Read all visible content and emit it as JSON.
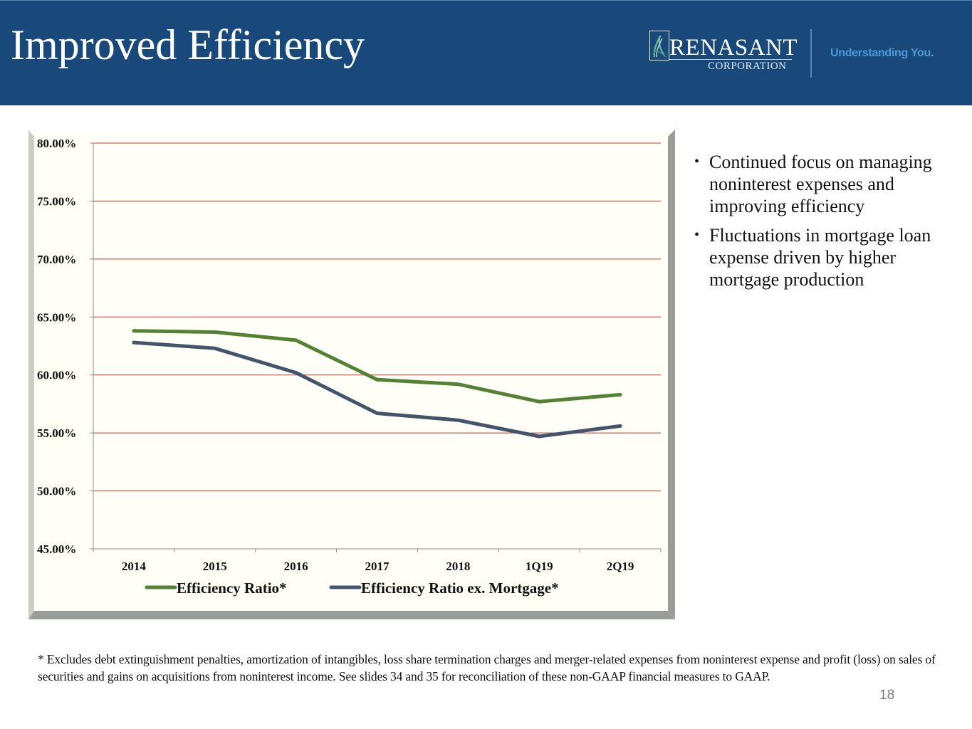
{
  "header": {
    "title": "Improved Efficiency",
    "logo": {
      "name": "RENASANT",
      "subtitle": "CORPORATION",
      "icon": "renasant-leaf-icon",
      "tagline": "Understanding You."
    },
    "colors": {
      "banner": "#19497a",
      "tagline": "#4a9ad6"
    }
  },
  "bullets": [
    "Continued focus on managing noninterest expenses and improving efficiency",
    "Fluctuations in mortgage loan expense driven by higher mortgage production"
  ],
  "footnote": "* Excludes debt extinguishment penalties, amortization of intangibles, loss share termination charges and merger-related expenses from noninterest expense and profit (loss) on sales of securities and gains on acquisitions from noninterest income.  See slides 34 and 35 for reconciliation of these non-GAAP financial measures to GAAP.",
  "page_number": "18",
  "chart_data": {
    "type": "line",
    "title": "",
    "xlabel": "",
    "ylabel": "",
    "categories": [
      "2014",
      "2015",
      "2016",
      "2017",
      "2018",
      "1Q19",
      "2Q19"
    ],
    "ylim": [
      45,
      80
    ],
    "yticks": [
      45,
      50,
      55,
      60,
      65,
      70,
      75,
      80
    ],
    "ytick_labels": [
      "45.00%",
      "50.00%",
      "55.00%",
      "60.00%",
      "65.00%",
      "70.00%",
      "75.00%",
      "80.00%"
    ],
    "grid": true,
    "legend_position": "bottom",
    "series": [
      {
        "name": "Efficiency Ratio*",
        "color": "#548235",
        "values": [
          63.8,
          63.7,
          63.0,
          59.6,
          59.2,
          57.7,
          58.3
        ]
      },
      {
        "name": "Efficiency Ratio ex. Mortgage*",
        "color": "#44546a",
        "values": [
          62.8,
          62.3,
          60.2,
          56.7,
          56.1,
          54.7,
          55.6
        ]
      }
    ],
    "colors": {
      "gridline": "#c0392b",
      "plot_background": "#fffff5"
    }
  }
}
